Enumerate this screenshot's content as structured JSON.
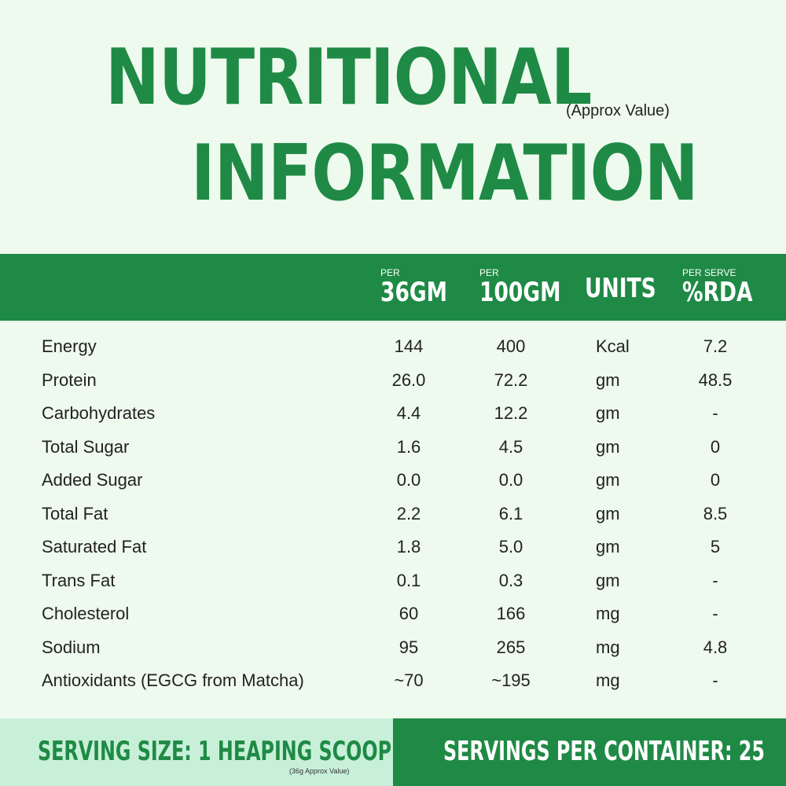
{
  "title": {
    "line1": "NUTRITIONAL",
    "line2": "INFORMATION",
    "subtitle": "(Approx Value)"
  },
  "columns": [
    {
      "small": "PER",
      "big": "36GM"
    },
    {
      "small": "PER",
      "big": "100GM"
    },
    {
      "small": "",
      "big": "UNITS"
    },
    {
      "small": "PER SERVE",
      "big": "%RDA"
    }
  ],
  "rows": [
    {
      "name": "Energy",
      "per36": "144",
      "per100": "400",
      "unit": "Kcal",
      "rda": "7.2"
    },
    {
      "name": "Protein",
      "per36": "26.0",
      "per100": "72.2",
      "unit": "gm",
      "rda": "48.5"
    },
    {
      "name": "Carbohydrates",
      "per36": "4.4",
      "per100": "12.2",
      "unit": "gm",
      "rda": "-"
    },
    {
      "name": "Total Sugar",
      "per36": "1.6",
      "per100": "4.5",
      "unit": "gm",
      "rda": "0"
    },
    {
      "name": "Added Sugar",
      "per36": "0.0",
      "per100": "0.0",
      "unit": "gm",
      "rda": "0"
    },
    {
      "name": "Total Fat",
      "per36": "2.2",
      "per100": "6.1",
      "unit": "gm",
      "rda": "8.5"
    },
    {
      "name": "Saturated Fat",
      "per36": "1.8",
      "per100": "5.0",
      "unit": "gm",
      "rda": "5"
    },
    {
      "name": "Trans Fat",
      "per36": "0.1",
      "per100": "0.3",
      "unit": "gm",
      "rda": "-"
    },
    {
      "name": "Cholesterol",
      "per36": "60",
      "per100": "166",
      "unit": "mg",
      "rda": "-"
    },
    {
      "name": "Sodium",
      "per36": "95",
      "per100": "265",
      "unit": "mg",
      "rda": "4.8"
    },
    {
      "name": "Antioxidants (EGCG from Matcha)",
      "per36": "~70",
      "per100": "~195",
      "unit": "mg",
      "rda": "-"
    }
  ],
  "footer": {
    "serving_size": "SERVING SIZE: 1 HEAPING SCOOP",
    "serving_note": "(36g Approx Value)",
    "servings_per_container": "SERVINGS PER CONTAINER: 25"
  },
  "colors": {
    "brand_green": "#1f8a45",
    "background": "#eefaee",
    "footer_light": "#c8f0d8"
  }
}
